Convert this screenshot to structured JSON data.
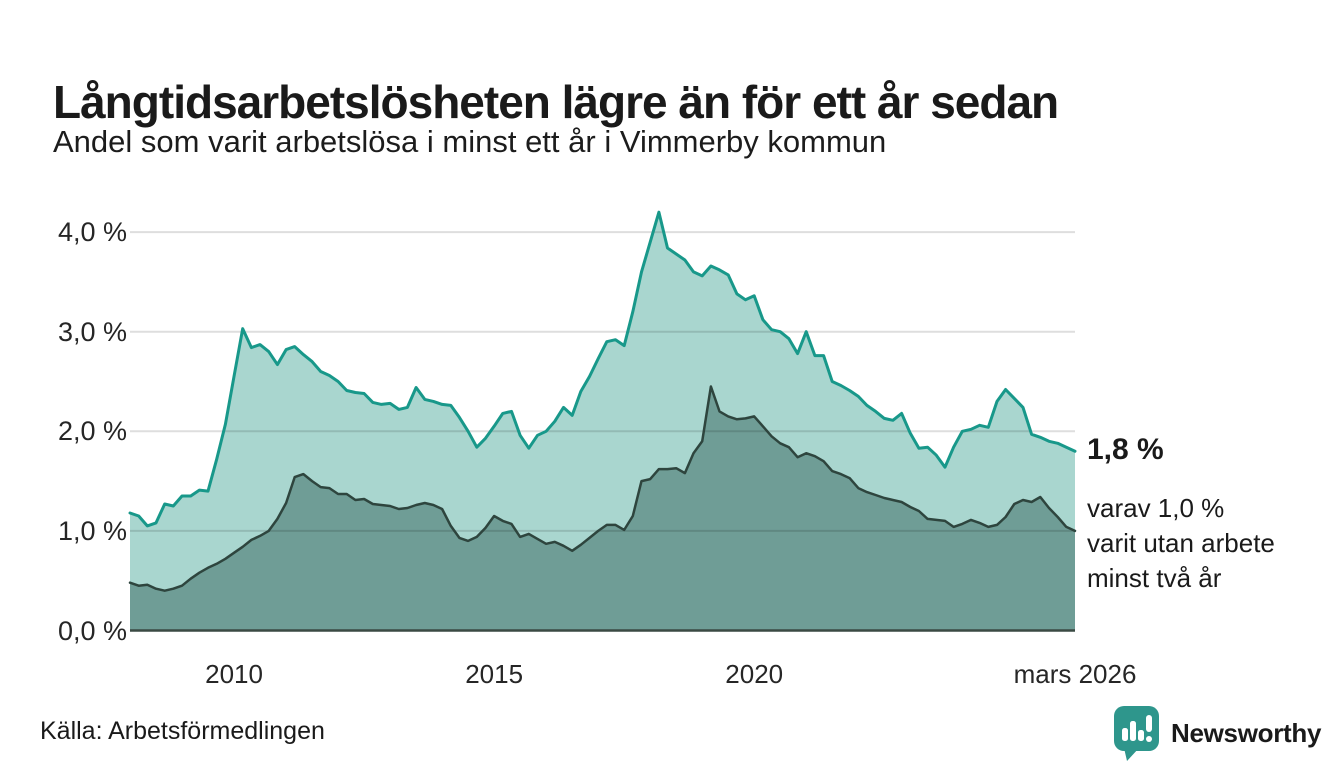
{
  "page": {
    "title": "Långtidsarbetslösheten lägre än för ett år sedan",
    "subtitle": "Andel som varit arbetslösa i minst ett år i Vimmerby kommun",
    "source": "Källa: Arbetsförmedlingen",
    "brand": {
      "name": "Newsworthy",
      "color": "#2e968c"
    }
  },
  "annotations": {
    "end_value_main": "1,8 %",
    "end_note_line1": "varav 1,0 %",
    "end_note_line2": "varit utan arbete",
    "end_note_line3": "minst två år"
  },
  "chart_data": {
    "type": "area",
    "title": "Långtidsarbetslösheten lägre än för ett år sedan",
    "subtitle": "Andel som varit arbetslösa i minst ett år i Vimmerby kommun",
    "grid": true,
    "ylabel": "",
    "xlabel": "",
    "ylim": [
      0,
      4.3
    ],
    "xlim": [
      2008.0,
      2026.1667
    ],
    "x_start": 2008.0,
    "x_step": 0.1666667,
    "y_ticks": [
      {
        "value": 0,
        "label": "0,0 %"
      },
      {
        "value": 1,
        "label": "1,0 %"
      },
      {
        "value": 2,
        "label": "2,0 %"
      },
      {
        "value": 3,
        "label": "3,0 %"
      },
      {
        "value": 4,
        "label": "4,0 %"
      }
    ],
    "x_ticks": [
      {
        "x": 2010,
        "label": "2010"
      },
      {
        "x": 2015,
        "label": "2015"
      },
      {
        "x": 2020,
        "label": "2020"
      },
      {
        "x": 2026.1667,
        "label": "mars 2026"
      }
    ],
    "series": [
      {
        "name": "varit arbetslösa minst ett år",
        "end_label": "1,8 %",
        "color_line": "#18988a",
        "color_fill": "#a9d6cf",
        "values": [
          1.18,
          1.15,
          1.05,
          1.08,
          1.27,
          1.25,
          1.35,
          1.35,
          1.41,
          1.4,
          1.72,
          2.07,
          2.55,
          3.03,
          2.84,
          2.87,
          2.8,
          2.67,
          2.82,
          2.85,
          2.77,
          2.7,
          2.6,
          2.56,
          2.5,
          2.41,
          2.39,
          2.38,
          2.29,
          2.27,
          2.28,
          2.22,
          2.24,
          2.44,
          2.32,
          2.3,
          2.27,
          2.26,
          2.14,
          2.0,
          1.84,
          1.93,
          2.05,
          2.18,
          2.2,
          1.96,
          1.83,
          1.96,
          2.0,
          2.1,
          2.24,
          2.16,
          2.4,
          2.55,
          2.73,
          2.9,
          2.92,
          2.86,
          3.2,
          3.6,
          3.9,
          4.2,
          3.84,
          3.78,
          3.72,
          3.6,
          3.56,
          3.66,
          3.62,
          3.57,
          3.38,
          3.32,
          3.36,
          3.12,
          3.02,
          3.0,
          2.93,
          2.78,
          3.0,
          2.76,
          2.76,
          2.5,
          2.46,
          2.41,
          2.35,
          2.26,
          2.2,
          2.13,
          2.11,
          2.18,
          1.98,
          1.83,
          1.84,
          1.76,
          1.64,
          1.84,
          2.0,
          2.02,
          2.06,
          2.04,
          2.3,
          2.42,
          2.33,
          2.24,
          1.97,
          1.94,
          1.9,
          1.88,
          1.84,
          1.8
        ]
      },
      {
        "name": "varit utan arbete minst två år",
        "end_label": "1,0 %",
        "color_line": "#2e453e",
        "color_fill": "#6f9d96",
        "values": [
          0.48,
          0.45,
          0.46,
          0.42,
          0.4,
          0.42,
          0.45,
          0.52,
          0.58,
          0.63,
          0.67,
          0.72,
          0.78,
          0.84,
          0.91,
          0.95,
          1.0,
          1.12,
          1.28,
          1.54,
          1.57,
          1.5,
          1.44,
          1.43,
          1.37,
          1.37,
          1.31,
          1.32,
          1.27,
          1.26,
          1.25,
          1.22,
          1.23,
          1.26,
          1.28,
          1.26,
          1.22,
          1.05,
          0.93,
          0.9,
          0.94,
          1.03,
          1.15,
          1.1,
          1.07,
          0.94,
          0.97,
          0.92,
          0.87,
          0.89,
          0.85,
          0.8,
          0.86,
          0.93,
          1.0,
          1.06,
          1.06,
          1.01,
          1.15,
          1.5,
          1.52,
          1.62,
          1.62,
          1.63,
          1.58,
          1.78,
          1.9,
          2.45,
          2.2,
          2.15,
          2.12,
          2.13,
          2.15,
          2.05,
          1.95,
          1.88,
          1.84,
          1.74,
          1.78,
          1.75,
          1.7,
          1.6,
          1.57,
          1.53,
          1.43,
          1.39,
          1.36,
          1.33,
          1.31,
          1.29,
          1.24,
          1.2,
          1.12,
          1.11,
          1.1,
          1.04,
          1.07,
          1.11,
          1.08,
          1.04,
          1.06,
          1.14,
          1.27,
          1.31,
          1.29,
          1.34,
          1.23,
          1.14,
          1.04,
          1.0
        ]
      }
    ]
  }
}
